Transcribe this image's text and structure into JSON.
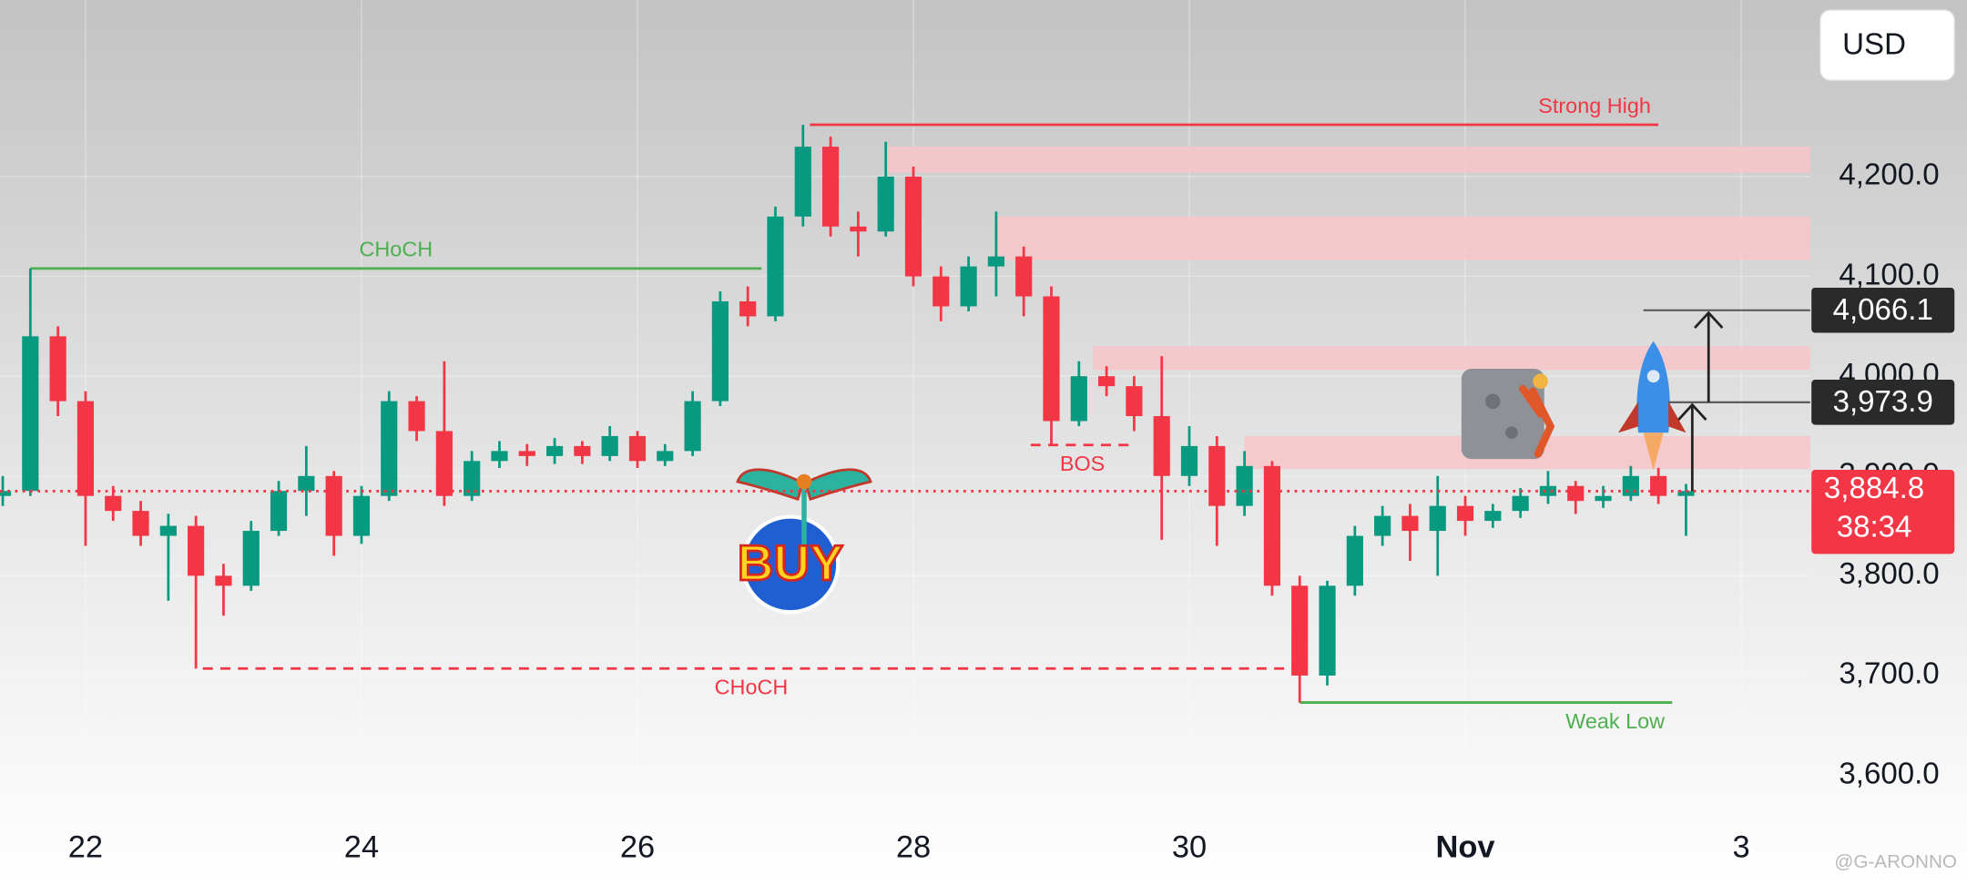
{
  "chart_data": {
    "type": "candlestick",
    "x": [
      21.4,
      21.6,
      21.8,
      22,
      22.2,
      22.4,
      22.6,
      22.8,
      23,
      23.2,
      23.4,
      23.6,
      23.8,
      24,
      24.2,
      24.4,
      24.6,
      24.8,
      25,
      25.2,
      25.4,
      25.6,
      25.8,
      26,
      26.2,
      26.4,
      26.6,
      26.8,
      27,
      27.2,
      27.4,
      27.6,
      27.8,
      28,
      28.2,
      28.4,
      28.6,
      28.8,
      29,
      29.2,
      29.4,
      29.6,
      29.8,
      30,
      30.2,
      30.4,
      30.6,
      30.8,
      31,
      31.2,
      31.4,
      31.6,
      31.8,
      32,
      32.2,
      32.4,
      32.6,
      32.8,
      33,
      33.2,
      33.4,
      33.6
    ],
    "open": [
      3880,
      3885,
      4040,
      3975,
      3880,
      3865,
      3840,
      3850,
      3800,
      3790,
      3845,
      3885,
      3900,
      3840,
      3880,
      3975,
      3945,
      3880,
      3915,
      3925,
      3920,
      3930,
      3920,
      3940,
      3915,
      3925,
      3975,
      4075,
      4060,
      4160,
      4230,
      4150,
      4145,
      4200,
      4100,
      4070,
      4110,
      4120,
      4080,
      3955,
      4000,
      3990,
      3960,
      3900,
      3930,
      3870,
      3910,
      3790,
      3700,
      3790,
      3840,
      3860,
      3845,
      3870,
      3855,
      3865,
      3880,
      3890,
      3875,
      3880,
      3900,
      3880
    ],
    "high": [
      3900,
      4108,
      4050,
      3985,
      3890,
      3875,
      3862,
      3860,
      3812,
      3855,
      3895,
      3930,
      3905,
      3890,
      3985,
      3980,
      4015,
      3925,
      3935,
      3932,
      3938,
      3935,
      3950,
      3945,
      3932,
      3985,
      4085,
      4090,
      4170,
      4252,
      4240,
      4165,
      4235,
      4210,
      4110,
      4120,
      4165,
      4130,
      4090,
      4015,
      4010,
      4000,
      4020,
      3950,
      3940,
      3925,
      3915,
      3800,
      3795,
      3850,
      3870,
      3872,
      3900,
      3880,
      3872,
      3888,
      3905,
      3895,
      3890,
      3910,
      3908,
      3892
    ],
    "low": [
      3870,
      3880,
      3960,
      3830,
      3855,
      3830,
      3775,
      3707,
      3760,
      3785,
      3840,
      3860,
      3820,
      3832,
      3875,
      3935,
      3870,
      3875,
      3908,
      3910,
      3912,
      3912,
      3915,
      3908,
      3910,
      3920,
      3970,
      4050,
      4055,
      4150,
      4140,
      4120,
      4140,
      4090,
      4055,
      4065,
      4080,
      4060,
      3931,
      3950,
      3980,
      3945,
      3836,
      3890,
      3830,
      3860,
      3780,
      3673,
      3690,
      3780,
      3830,
      3815,
      3800,
      3840,
      3848,
      3858,
      3872,
      3862,
      3868,
      3875,
      3872,
      3840
    ],
    "close": [
      3885,
      4040,
      3975,
      3880,
      3865,
      3840,
      3850,
      3800,
      3790,
      3845,
      3885,
      3900,
      3840,
      3880,
      3975,
      3945,
      3880,
      3915,
      3925,
      3920,
      3930,
      3920,
      3940,
      3915,
      3925,
      3975,
      4075,
      4060,
      4160,
      4230,
      4150,
      4145,
      4200,
      4100,
      4070,
      4110,
      4120,
      4080,
      3955,
      4000,
      3990,
      3960,
      3900,
      3930,
      3870,
      3910,
      3790,
      3700,
      3790,
      3840,
      3860,
      3845,
      3870,
      3855,
      3865,
      3880,
      3890,
      3875,
      3880,
      3900,
      3880,
      3885
    ],
    "up_color": "#089981",
    "down_color": "#f23645",
    "xlim": [
      21.38,
      34.5
    ],
    "ylim": [
      3560,
      4377
    ],
    "xticks": [
      22,
      24,
      26,
      28,
      30,
      {
        "value": 32,
        "label": "Nov"
      },
      {
        "value": 34,
        "label": "3"
      }
    ],
    "yticks": [
      {
        "value": 3600,
        "label": "3,600.0"
      },
      {
        "value": 3700,
        "label": "3,700.0"
      },
      {
        "value": 3800,
        "label": "3,800.0"
      },
      {
        "value": 3900,
        "label": "3,900.0"
      },
      {
        "value": 4000,
        "label": "4,000.0"
      },
      {
        "value": 4100,
        "label": "4,100.0"
      },
      {
        "value": 4200,
        "label": "4,200.0"
      }
    ],
    "grid": true,
    "zones": [
      {
        "y": [
          4204,
          4230
        ],
        "x": [
          27.8,
          34.5
        ]
      },
      {
        "y": [
          4116,
          4160
        ],
        "x": [
          28.6,
          34.5
        ]
      },
      {
        "y": [
          4006,
          4030
        ],
        "x": [
          29.3,
          34.5
        ]
      },
      {
        "y": [
          3907,
          3940
        ],
        "x": [
          30.4,
          34.5
        ]
      }
    ],
    "zone_color": "#f7c6c9",
    "levels": [
      {
        "label": "Strong High",
        "value": 4252,
        "x": [
          27.25,
          33.4
        ],
        "color": "#f23645",
        "style": "solid",
        "label_side": "above",
        "label_anchor": "end"
      },
      {
        "label": "CHoCH",
        "value": 4108,
        "x": [
          21.6,
          26.9
        ],
        "color": "#4caf50",
        "style": "solid",
        "label_side": "above",
        "label_anchor": "middle"
      },
      {
        "label": "CHoCH",
        "value": 3707,
        "x": [
          22.85,
          30.8
        ],
        "color": "#f23645",
        "style": "dashed",
        "label_side": "below",
        "label_anchor": "middle"
      },
      {
        "label": "BOS",
        "value": 3931,
        "x": [
          28.85,
          29.6
        ],
        "color": "#f23645",
        "style": "dashed",
        "label_side": "below",
        "label_anchor": "middle"
      },
      {
        "label": "Weak Low",
        "value": 3673,
        "x": [
          30.8,
          33.5
        ],
        "color": "#4caf50",
        "style": "solid",
        "label_side": "below",
        "label_anchor": "end"
      }
    ],
    "price_labels": [
      {
        "value": 4066.1,
        "label": "4,066.1",
        "color": "#2a2a2a"
      },
      {
        "value": 3973.9,
        "label": "3,973.9",
        "color": "#2a2a2a"
      },
      {
        "value": 3884.8,
        "label": "3,884.8",
        "color": "#f23645"
      }
    ],
    "countdown": "38:34",
    "currency": "USD",
    "sticker_text": "BUY",
    "watermark": "@G-ARONNO"
  }
}
